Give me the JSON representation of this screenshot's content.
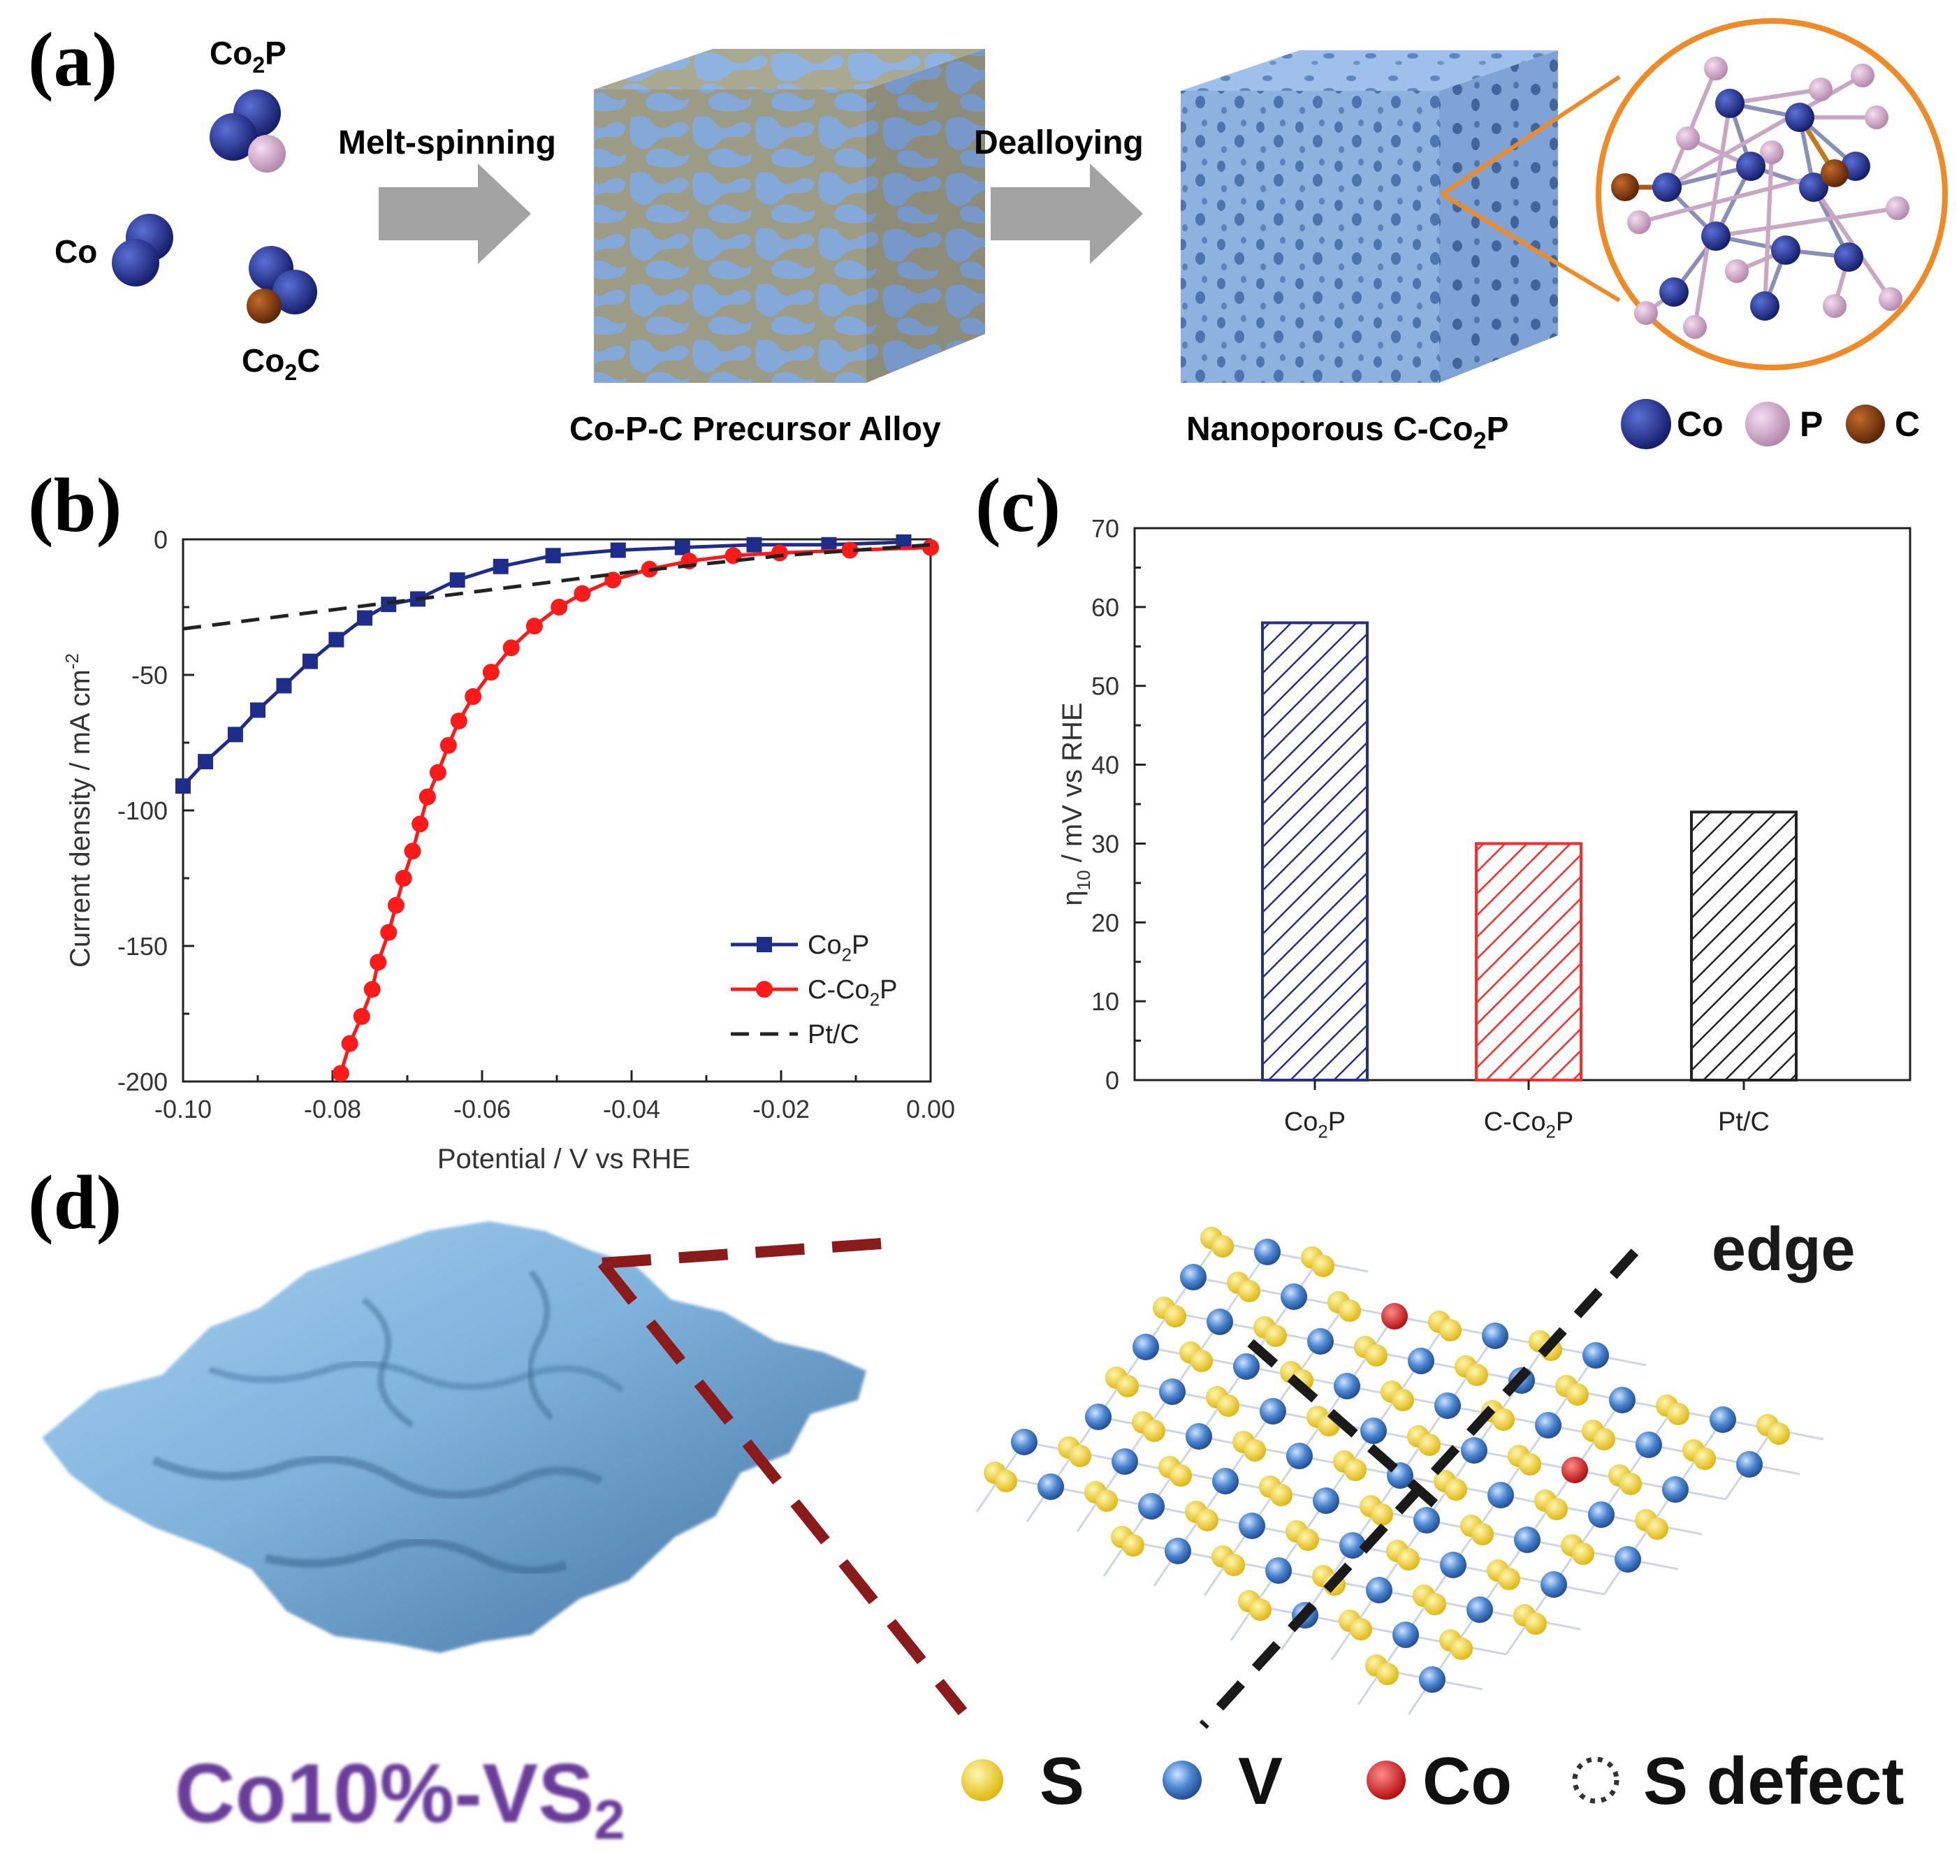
{
  "panel_a": {
    "label": "(a)",
    "species": {
      "co2p_base": "Co",
      "co2p_sub": "2",
      "co2p_tail": "P",
      "co": "Co",
      "co2c_base": "Co",
      "co2c_sub": "2",
      "co2c_tail": "C"
    },
    "arrow1_label": "Melt-spinning",
    "arrow2_label": "Dealloying",
    "cube1_caption": "Co-P-C Precursor Alloy",
    "cube2_caption_base": "Nanoporous C-Co",
    "cube2_caption_sub": "2",
    "cube2_caption_tail": "P",
    "legend": [
      "Co",
      "P",
      "C"
    ],
    "colors": {
      "co": "#1f2d8a",
      "p": "#d9a9d2",
      "c": "#8a3d0f",
      "cube_blue": "#8fb3e0",
      "cube_gray": "#a9a891",
      "zoom_ring": "#f08a24",
      "arrow": "#a3a3a3"
    }
  },
  "panel_b": {
    "label": "(b)",
    "chart_data": {
      "type": "line",
      "xlabel": "Potential / V vs RHE",
      "ylabel": "Current density / mA cm",
      "ylabel_sup": "-2",
      "xlim": [
        -0.1,
        0.0
      ],
      "ylim": [
        -200,
        0
      ],
      "xticks": [
        "-0.10",
        "-0.08",
        "-0.06",
        "-0.04",
        "-0.02",
        "0.00"
      ],
      "yticks": [
        "0",
        "-50",
        "-100",
        "-150",
        "-200"
      ],
      "series": [
        {
          "name": "Co2P",
          "legend_base": "Co",
          "legend_sub": "2",
          "legend_tail": "P",
          "color": "#1f2d8a",
          "marker": "square",
          "x": [
            -0.1,
            -0.097,
            -0.093,
            -0.09,
            -0.0865,
            -0.083,
            -0.0795,
            -0.0757,
            -0.0725,
            -0.0686,
            -0.0633,
            -0.0575,
            -0.0505,
            -0.0418,
            -0.0332,
            -0.0236,
            -0.0136,
            -0.0036
          ],
          "y": [
            -91,
            -82,
            -72,
            -63,
            -54,
            -45,
            -37,
            -29,
            -24,
            -22,
            -15,
            -10,
            -6,
            -4,
            -3,
            -2,
            -2,
            -1
          ]
        },
        {
          "name": "C-Co2P",
          "legend_base": "C-Co",
          "legend_sub": "2",
          "legend_tail": "P",
          "color": "#ff1a1a",
          "marker": "circle",
          "x": [
            -0.0789,
            -0.0777,
            -0.0761,
            -0.0747,
            -0.0739,
            -0.0725,
            -0.0715,
            -0.0705,
            -0.0693,
            -0.0683,
            -0.0673,
            -0.0659,
            -0.0645,
            -0.0631,
            -0.0612,
            -0.0588,
            -0.0561,
            -0.053,
            -0.0497,
            -0.0466,
            -0.0425,
            -0.0376,
            -0.0323,
            -0.0264,
            -0.0202,
            -0.0108,
            0.0
          ],
          "y": [
            -197,
            -186,
            -176,
            -166,
            -156,
            -145,
            -135,
            -125,
            -115,
            -105,
            -95,
            -86,
            -76,
            -67,
            -58,
            -49,
            -40,
            -32,
            -25,
            -20,
            -15,
            -11,
            -8,
            -6,
            -5,
            -4,
            -3
          ]
        },
        {
          "name": "Pt/C",
          "legend_base": "Pt/C",
          "legend_sub": "",
          "legend_tail": "",
          "color": "#222222",
          "marker": "none",
          "dash": true,
          "x": [
            -0.1,
            -0.08,
            -0.06,
            -0.04,
            -0.02,
            0.0
          ],
          "y": [
            -33,
            -26,
            -19,
            -12,
            -6,
            -2
          ]
        }
      ]
    }
  },
  "panel_c": {
    "label": "(c)",
    "chart_data": {
      "type": "bar",
      "categories": [
        {
          "base": "Co",
          "sub": "2",
          "tail": "P"
        },
        {
          "base": "C-Co",
          "sub": "2",
          "tail": "P"
        },
        {
          "base": "Pt/C",
          "sub": "",
          "tail": ""
        }
      ],
      "values": [
        58,
        30,
        34
      ],
      "colors": [
        "#2a2f86",
        "#ff2a2a",
        "#222222"
      ],
      "ylabel_base": "η",
      "ylabel_sub": "10",
      "ylabel_tail": " / mV vs RHE",
      "ylim": [
        0,
        70
      ],
      "yticks": [
        "0",
        "10",
        "20",
        "30",
        "40",
        "50",
        "60",
        "70"
      ]
    }
  },
  "panel_d": {
    "label": "(d)",
    "material_base": "Co10%-VS",
    "material_sub": "2",
    "edge_label": "edge",
    "legend": [
      "S",
      "V",
      "Co",
      "S defect"
    ],
    "colors": {
      "s": "#f2d22e",
      "v": "#3f78c4",
      "co": "#d42222",
      "sheet": "#7fb2dc",
      "dash_red": "#8b1a1a",
      "text_purple": "#6b3d9a"
    }
  }
}
